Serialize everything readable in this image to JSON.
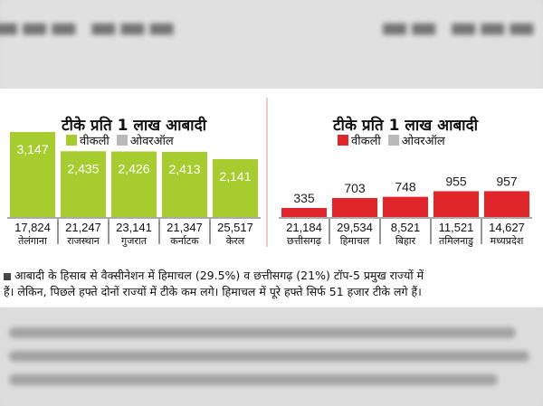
{
  "chart_data": [
    {
      "type": "bar",
      "title": "टीके प्रति 1 लाख आबादी",
      "color": "#a6cc2f",
      "legend": [
        {
          "label": "वीकली",
          "color": "#a6cc2f"
        },
        {
          "label": "ओवरऑल",
          "color": "#b9b9b9"
        }
      ],
      "categories": [
        "तेलंगाना",
        "राजस्थान",
        "गुजरात",
        "कर्नाटक",
        "केरल"
      ],
      "weekly": [
        3147,
        2435,
        2426,
        2413,
        2141
      ],
      "weekly_labels": [
        "3,147",
        "2,435",
        "2,426",
        "2,413",
        "2,141"
      ],
      "overall": [
        17824,
        21247,
        23141,
        21347,
        25517
      ],
      "overall_labels": [
        "17,824",
        "21,247",
        "23,141",
        "21,347",
        "25,517"
      ]
    },
    {
      "type": "bar",
      "title": "टीके प्रति 1 लाख आबादी",
      "color": "#e0252b",
      "legend": [
        {
          "label": "वीकली",
          "color": "#e0252b"
        },
        {
          "label": "ओवरऑल",
          "color": "#b9b9b9"
        }
      ],
      "categories": [
        "छत्तीसगढ़",
        "हिमाचल",
        "बिहार",
        "तमिलनाडु",
        "मध्यप्रदेश"
      ],
      "weekly": [
        335,
        703,
        748,
        955,
        957
      ],
      "weekly_labels": [
        "335",
        "703",
        "748",
        "955",
        "957"
      ],
      "overall": [
        21184,
        29534,
        8521,
        11521,
        14627
      ],
      "overall_labels": [
        "21,184",
        "29,534",
        "8,521",
        "11,521",
        "14,627"
      ]
    }
  ],
  "caption": {
    "line1": "आबादी के हिसाब से वैक्सीनेशन में हिमाचल (29.5%) व छत्तीसगढ़ (21%) टॉप-5 प्रमुख राज्यों में",
    "line2": "हैं। लेकिन, पिछले हफ्ते दोनों राज्यों में टीके कम लगे। हिमाचल में पूरे हफ्ते सिर्फ 51 हजार टीके लगे हैं।"
  }
}
